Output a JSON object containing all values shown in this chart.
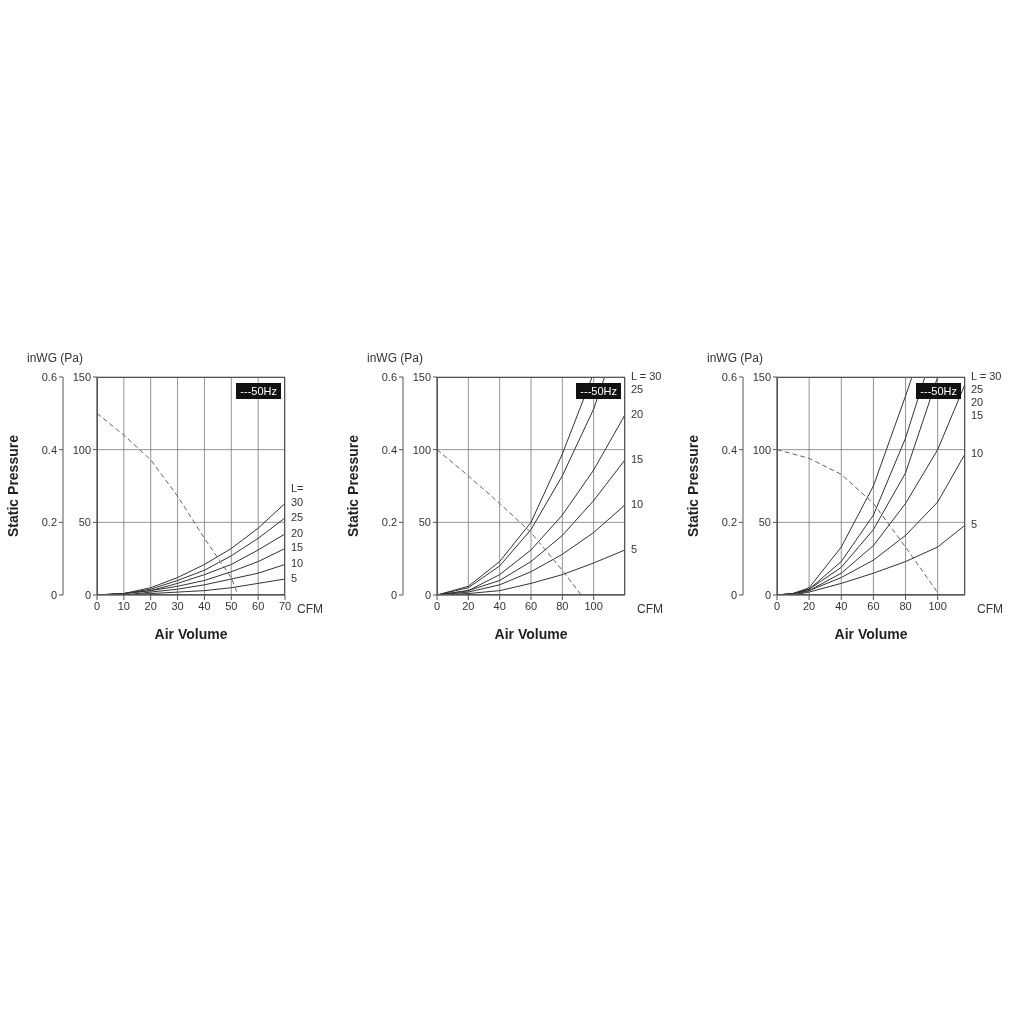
{
  "chart_data": [
    {
      "type": "line",
      "xlabel": "Air Volume",
      "ylabel": "Static Pressure",
      "annotations": [
        "inWG (Pa)",
        "CFM",
        "---50Hz",
        "L="
      ],
      "xlim": [
        0,
        70
      ],
      "xticks": [
        0,
        10,
        20,
        30,
        40,
        50,
        60,
        70
      ],
      "ylim": [
        0,
        0.6
      ],
      "yticks": [
        0,
        0.2,
        0.4,
        0.6
      ],
      "y2lim": [
        0,
        150
      ],
      "y2ticks": [
        0,
        50,
        100,
        150
      ],
      "grid": true,
      "marker": "none",
      "series": [
        {
          "name": "30",
          "axis": "y2",
          "color": "#333333",
          "x": [
            0,
            10,
            20,
            30,
            40,
            50,
            60,
            70
          ],
          "values": [
            0,
            1,
            5,
            12,
            21,
            32,
            46,
            63
          ]
        },
        {
          "name": "25",
          "axis": "y2",
          "color": "#333333",
          "x": [
            0,
            10,
            20,
            30,
            40,
            50,
            60,
            70
          ],
          "values": [
            0,
            1,
            4,
            10,
            17,
            27,
            39,
            53
          ]
        },
        {
          "name": "20",
          "axis": "y2",
          "color": "#333333",
          "x": [
            0,
            10,
            20,
            30,
            40,
            50,
            60,
            70
          ],
          "values": [
            0,
            1,
            3,
            8,
            14,
            21,
            31,
            42
          ]
        },
        {
          "name": "15",
          "axis": "y2",
          "color": "#333333",
          "x": [
            0,
            10,
            20,
            30,
            40,
            50,
            60,
            70
          ],
          "values": [
            0,
            1,
            3,
            6,
            10,
            16,
            23,
            32
          ]
        },
        {
          "name": "10",
          "axis": "y2",
          "color": "#333333",
          "x": [
            0,
            10,
            20,
            30,
            40,
            50,
            60,
            70
          ],
          "values": [
            0,
            0,
            2,
            4,
            7,
            11,
            15,
            21
          ]
        },
        {
          "name": "5",
          "axis": "y2",
          "color": "#333333",
          "x": [
            0,
            10,
            20,
            30,
            40,
            50,
            60,
            70
          ],
          "values": [
            0,
            0,
            1,
            2,
            3,
            5,
            8,
            11
          ]
        },
        {
          "axis": "y2",
          "color": "#666666",
          "line_style": "dashed",
          "x": [
            0,
            10,
            20,
            30,
            40,
            50,
            52.5
          ],
          "values": [
            125,
            110,
            93,
            68,
            39,
            12,
            0
          ]
        }
      ]
    },
    {
      "type": "line",
      "xlabel": "Air Volume",
      "ylabel": "Static Pressure",
      "annotations": [
        "inWG (Pa)",
        "CFM",
        "---50Hz"
      ],
      "xlim": [
        0,
        120
      ],
      "xticks": [
        0,
        20,
        40,
        60,
        80,
        100
      ],
      "ylim": [
        0,
        0.6
      ],
      "yticks": [
        0,
        0.2,
        0.4,
        0.6
      ],
      "y2lim": [
        0,
        150
      ],
      "y2ticks": [
        0,
        50,
        100,
        150
      ],
      "grid": true,
      "marker": "none",
      "series": [
        {
          "name": "L = 30",
          "axis": "y2",
          "color": "#333333",
          "x": [
            0,
            20,
            40,
            60,
            80,
            99
          ],
          "values": [
            0,
            6,
            23,
            50,
            97,
            150
          ]
        },
        {
          "name": "25",
          "axis": "y2",
          "color": "#333333",
          "x": [
            0,
            20,
            40,
            60,
            80,
            100,
            107
          ],
          "values": [
            0,
            5,
            20,
            45,
            82,
            128,
            150
          ]
        },
        {
          "name": "20",
          "axis": "y2",
          "color": "#333333",
          "x": [
            0,
            20,
            40,
            60,
            80,
            100,
            120
          ],
          "values": [
            0,
            3,
            14,
            31,
            55,
            86,
            124
          ]
        },
        {
          "name": "15",
          "axis": "y2",
          "color": "#333333",
          "x": [
            0,
            20,
            40,
            60,
            80,
            100,
            120
          ],
          "values": [
            0,
            3,
            10,
            23,
            41,
            65,
            93
          ]
        },
        {
          "name": "10",
          "axis": "y2",
          "color": "#333333",
          "x": [
            0,
            20,
            40,
            60,
            80,
            100,
            120
          ],
          "values": [
            0,
            2,
            7,
            16,
            28,
            43,
            62
          ]
        },
        {
          "name": "5",
          "axis": "y2",
          "color": "#333333",
          "x": [
            0,
            20,
            40,
            60,
            80,
            100,
            120
          ],
          "values": [
            0,
            1,
            3,
            8,
            14,
            22,
            31
          ]
        },
        {
          "axis": "y2",
          "color": "#666666",
          "line_style": "dashed",
          "x": [
            0,
            20,
            40,
            60,
            80,
            92
          ],
          "values": [
            100,
            82,
            63,
            43,
            17,
            0
          ]
        }
      ]
    },
    {
      "type": "line",
      "xlabel": "Air Volume",
      "ylabel": "Static Pressure",
      "annotations": [
        "inWG (Pa)",
        "CFM",
        "---50Hz"
      ],
      "xlim": [
        0,
        117
      ],
      "xticks": [
        0,
        20,
        40,
        60,
        80,
        100
      ],
      "ylim": [
        0,
        0.6
      ],
      "yticks": [
        0,
        0.2,
        0.4,
        0.6
      ],
      "y2lim": [
        0,
        150
      ],
      "y2ticks": [
        0,
        50,
        100,
        150
      ],
      "grid": true,
      "marker": "none",
      "series": [
        {
          "name": "L = 30",
          "axis": "y2",
          "color": "#333333",
          "x": [
            0,
            10,
            20,
            40,
            60,
            80,
            84
          ],
          "values": [
            0,
            1,
            5,
            33,
            75,
            137,
            150
          ]
        },
        {
          "name": "25",
          "axis": "y2",
          "color": "#333333",
          "x": [
            0,
            10,
            20,
            40,
            60,
            80,
            92
          ],
          "values": [
            0,
            1,
            4,
            23,
            55,
            108,
            150
          ]
        },
        {
          "name": "20",
          "axis": "y2",
          "color": "#333333",
          "x": [
            0,
            10,
            20,
            40,
            60,
            80,
            100
          ],
          "values": [
            0,
            1,
            4,
            19,
            45,
            84,
            150
          ]
        },
        {
          "name": "15",
          "axis": "y2",
          "color": "#333333",
          "x": [
            0,
            10,
            20,
            40,
            60,
            80,
            100,
            117
          ],
          "values": [
            0,
            1,
            3,
            15,
            34,
            63,
            100,
            145
          ]
        },
        {
          "name": "10",
          "axis": "y2",
          "color": "#333333",
          "x": [
            0,
            10,
            20,
            40,
            60,
            80,
            100,
            117
          ],
          "values": [
            0,
            0,
            3,
            12,
            24,
            41,
            64,
            97
          ]
        },
        {
          "name": "5",
          "axis": "y2",
          "color": "#333333",
          "x": [
            0,
            10,
            20,
            40,
            60,
            80,
            100,
            117
          ],
          "values": [
            0,
            0,
            2,
            8,
            15,
            23,
            33,
            48
          ]
        },
        {
          "axis": "y2",
          "color": "#666666",
          "line_style": "dashed",
          "x": [
            0,
            20,
            40,
            60,
            80,
            101
          ],
          "values": [
            100,
            94,
            83,
            63,
            33,
            0
          ]
        }
      ]
    }
  ]
}
